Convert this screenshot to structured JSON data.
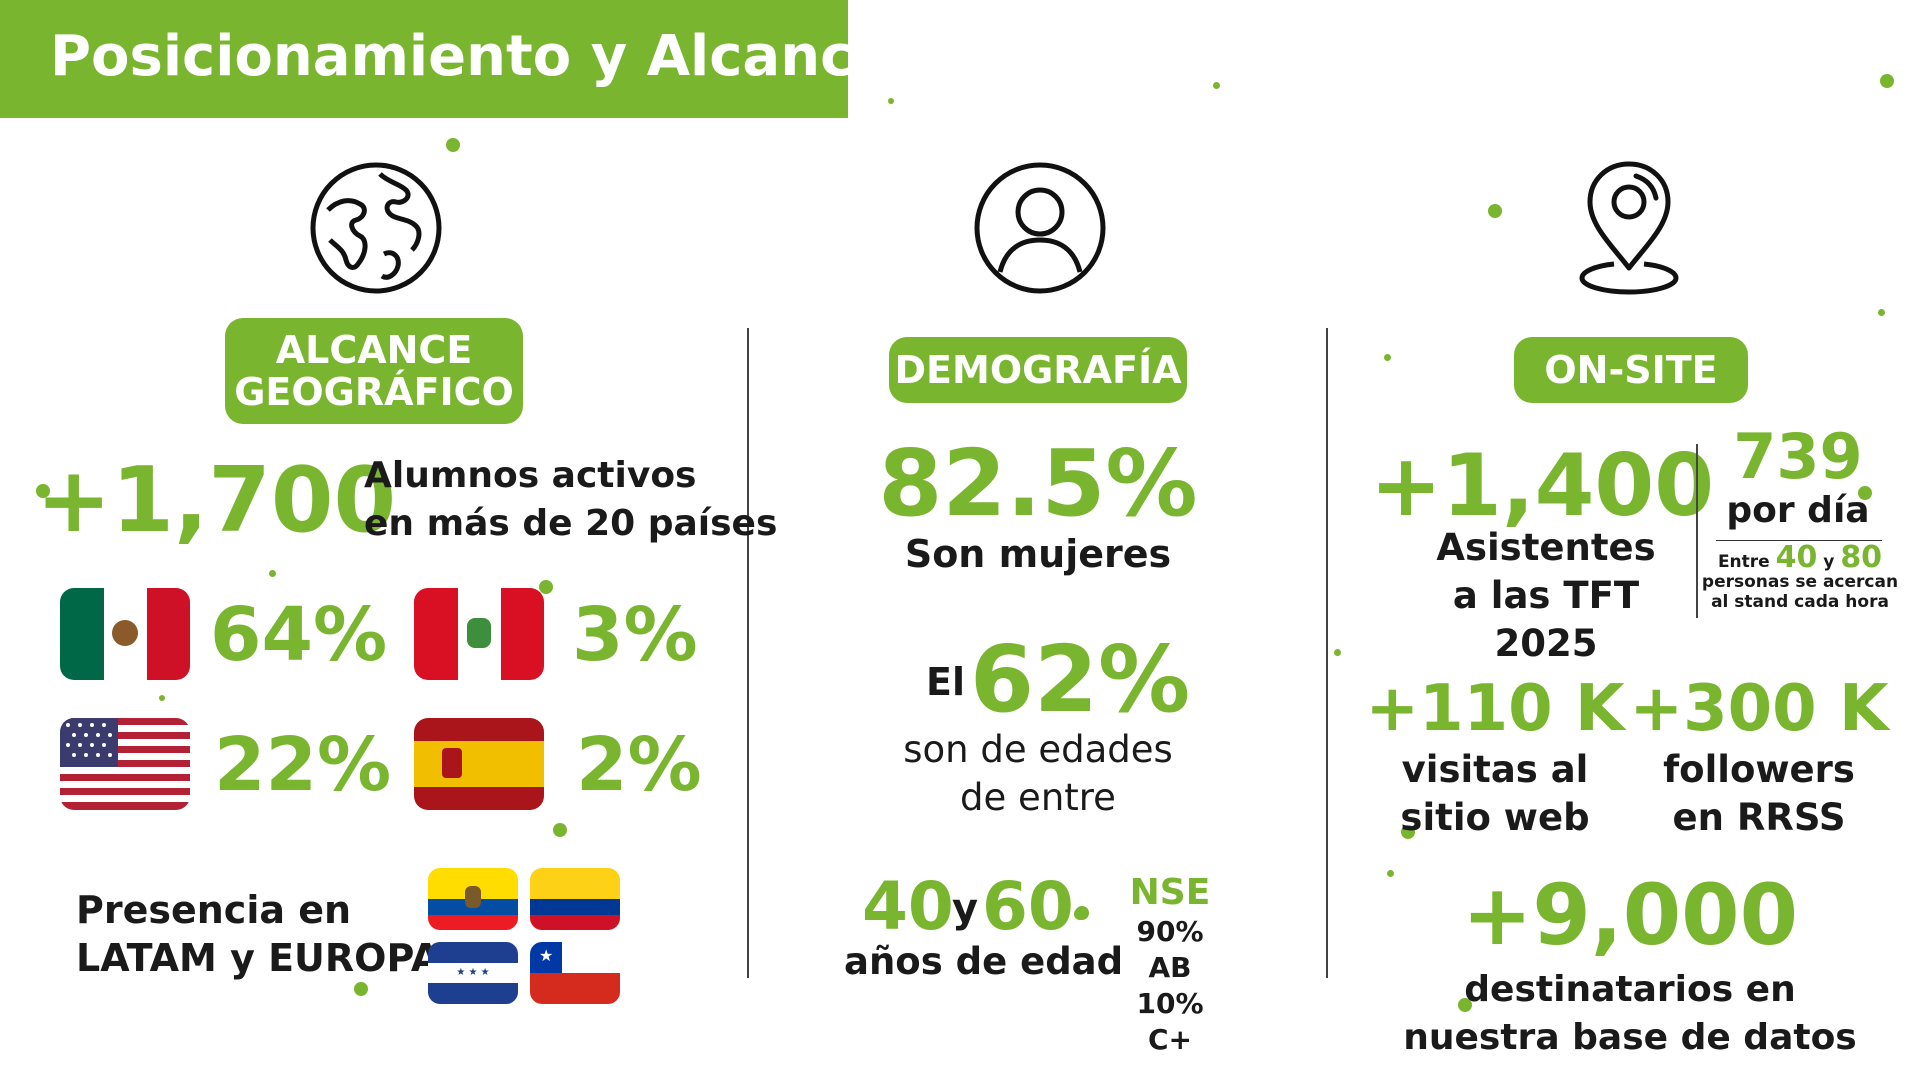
{
  "header": {
    "title": "Posicionamiento y Alcance"
  },
  "colors": {
    "accent": "#7ab530",
    "text": "#1a1a1a"
  },
  "geo": {
    "icon": "globe-icon",
    "pill": [
      "ALCANCE",
      "GEOGRÁFICO"
    ],
    "big_number": "+1,700",
    "desc": [
      "Alumnos activos",
      "en más de 20 países"
    ],
    "flags": [
      {
        "country": "mexico-flag-icon",
        "pct": "64%"
      },
      {
        "country": "peru-flag-icon",
        "pct": "3%"
      },
      {
        "country": "usa-flag-icon",
        "pct": "22%"
      },
      {
        "country": "spain-flag-icon",
        "pct": "2%"
      }
    ],
    "presence": [
      "Presencia en",
      "LATAM y EUROPA"
    ],
    "small_flags": [
      "ecuador-flag-icon",
      "colombia-flag-icon",
      "honduras-flag-icon",
      "chile-flag-icon"
    ]
  },
  "demo": {
    "icon": "user-icon",
    "pill": "DEMOGRAFÍA",
    "women_pct": "82.5%",
    "women_label": "Son mujeres",
    "el": "El",
    "age_pct": "62%",
    "age_desc": [
      "son de edades",
      "de entre"
    ],
    "age_from": "40",
    "age_y": "y",
    "age_to": "60",
    "age_label": "años de edad",
    "nse_title": "NSE",
    "nse_lines": [
      "90% AB",
      "10% C+"
    ]
  },
  "onsite": {
    "icon": "location-pin-icon",
    "pill": "ON-SITE",
    "attendees": "+1,400",
    "attendees_label": [
      "Asistentes",
      "a las TFT 2025"
    ],
    "per_day_num": "739",
    "per_day_label": "por día",
    "between_pre": "Entre",
    "between_a": "40",
    "between_y": "y",
    "between_b": "80",
    "between_rest": [
      "personas se acercan",
      "al stand cada hora"
    ],
    "visits": "+110 K",
    "visits_label": [
      "visitas al",
      "sitio web"
    ],
    "followers": "+300 K",
    "followers_label": [
      "followers",
      "en RRSS"
    ],
    "db": "+9,000",
    "db_label": [
      "destinatarios en",
      "nuestra base de datos"
    ]
  }
}
